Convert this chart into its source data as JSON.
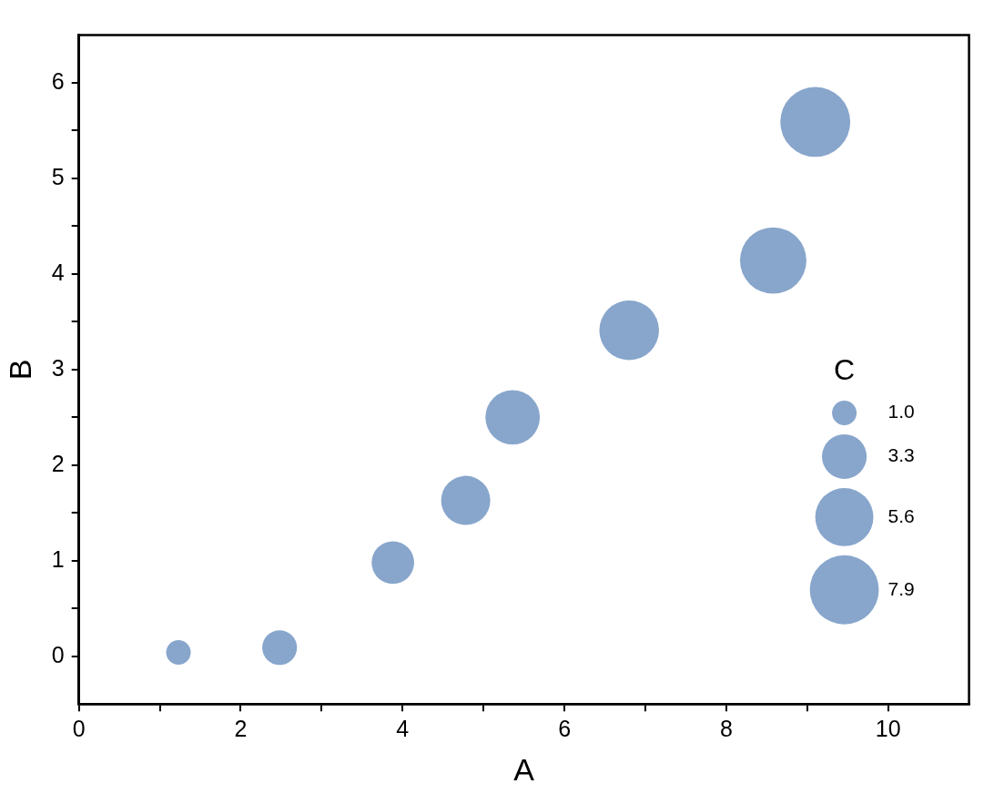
{
  "chart_data": {
    "type": "bubble",
    "xlabel": "A",
    "ylabel": "B",
    "legend_title": "C",
    "x": [
      1.23,
      2.48,
      3.88,
      4.78,
      5.36,
      6.8,
      8.58,
      9.1
    ],
    "values": [
      0.04,
      0.09,
      0.98,
      1.63,
      2.5,
      3.41,
      4.14,
      5.59
    ],
    "sizes": [
      1,
      2,
      3,
      4,
      4.9,
      5.9,
      7.3,
      8.1
    ],
    "size_legend": [
      {
        "value": 1.0,
        "label": "1.0"
      },
      3.3,
      5.6,
      7.9
    ],
    "color": "#88a6cc",
    "xlim": [
      0,
      11
    ],
    "xticks": [
      0,
      {
        "value": 1,
        "label": null
      },
      2,
      {
        "value": 3,
        "label": null
      },
      4,
      {
        "value": 5,
        "label": null
      },
      6,
      {
        "value": 7,
        "label": null
      },
      8,
      {
        "value": 9,
        "label": null
      },
      10
    ],
    "ylim": [
      -0.5,
      6.5
    ],
    "yticks": [
      0,
      {
        "value": 0.5,
        "label": null
      },
      1,
      {
        "value": 1.5,
        "label": null
      },
      2,
      {
        "value": 2.5,
        "label": null
      },
      3,
      {
        "value": 3.5,
        "label": null
      },
      4,
      {
        "value": 4.5,
        "label": null
      },
      5,
      {
        "value": 5.5,
        "label": null
      },
      6
    ],
    "grid": false
  }
}
